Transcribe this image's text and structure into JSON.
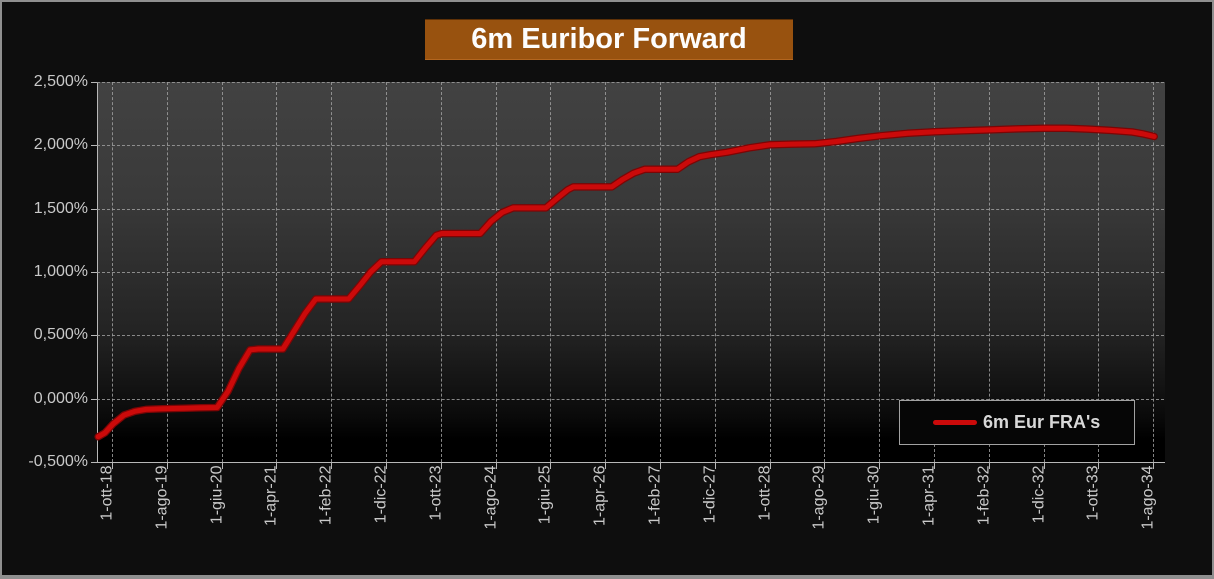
{
  "window": {
    "background": "#0e0e0e",
    "frame_border_color": "#8f8f8f"
  },
  "title": {
    "text": "6m Euribor Forward",
    "background": "#98520f",
    "color": "#fdfdfd"
  },
  "legend": {
    "label": "6m Eur FRA's",
    "line_color": "#cb0a0a",
    "position": "bottom-right"
  },
  "axis_style": {
    "axis_color": "#b8b8b8",
    "gridline_color": "#9d9d9d",
    "tick_label_color": "#c9c9c9",
    "grid": "dashed"
  },
  "chart_data": {
    "type": "line",
    "title": "6m Euribor Forward",
    "ylabel": "",
    "xlabel": "",
    "ylim": [
      -0.5,
      2.5
    ],
    "y_tick_labels": [
      "2,500%",
      "2,000%",
      "1,500%",
      "1,000%",
      "0,500%",
      "0,000%",
      "-0,500%"
    ],
    "y_tick_values": [
      2.5,
      2.0,
      1.5,
      1.0,
      0.5,
      0.0,
      -0.5
    ],
    "x_tick_labels": [
      "1-ott-18",
      "1-ago-19",
      "1-giu-20",
      "1-apr-21",
      "1-feb-22",
      "1-dic-22",
      "1-ott-23",
      "1-ago-24",
      "1-giu-25",
      "1-apr-26",
      "1-feb-27",
      "1-dic-27",
      "1-ott-28",
      "1-ago-29",
      "1-giu-30",
      "1-apr-31",
      "1-feb-32",
      "1-dic-32",
      "1-ott-33",
      "1-ago-34"
    ],
    "x_unit": "months since 1-ott-18; each tick = 10 months",
    "legend_position": "bottom-right",
    "series": [
      {
        "name": "6m Eur FRA's",
        "color": "#cb0a0a",
        "points_month_value": [
          [
            -2.7,
            -0.3
          ],
          [
            -1.5,
            -0.27
          ],
          [
            0,
            -0.2
          ],
          [
            2,
            -0.13
          ],
          [
            4,
            -0.1
          ],
          [
            6,
            -0.085
          ],
          [
            9,
            -0.08
          ],
          [
            13,
            -0.075
          ],
          [
            16,
            -0.072
          ],
          [
            19,
            -0.07
          ],
          [
            21,
            0.06
          ],
          [
            23,
            0.24
          ],
          [
            25,
            0.385
          ],
          [
            26.5,
            0.392
          ],
          [
            31,
            0.392
          ],
          [
            33,
            0.53
          ],
          [
            35,
            0.67
          ],
          [
            37,
            0.787
          ],
          [
            43,
            0.787
          ],
          [
            45,
            0.89
          ],
          [
            47,
            1.0
          ],
          [
            49,
            1.081
          ],
          [
            55,
            1.081
          ],
          [
            57,
            1.19
          ],
          [
            59,
            1.29
          ],
          [
            60,
            1.304
          ],
          [
            67,
            1.304
          ],
          [
            69,
            1.4
          ],
          [
            71,
            1.47
          ],
          [
            73,
            1.506
          ],
          [
            79,
            1.506
          ],
          [
            81,
            1.58
          ],
          [
            83,
            1.65
          ],
          [
            84,
            1.672
          ],
          [
            91,
            1.672
          ],
          [
            93,
            1.73
          ],
          [
            95,
            1.78
          ],
          [
            97,
            1.811
          ],
          [
            103,
            1.811
          ],
          [
            105,
            1.87
          ],
          [
            107,
            1.91
          ],
          [
            109,
            1.926
          ],
          [
            112,
            1.945
          ],
          [
            116,
            1.98
          ],
          [
            120,
            2.005
          ],
          [
            124,
            2.01
          ],
          [
            128,
            2.012
          ],
          [
            132,
            2.03
          ],
          [
            136,
            2.055
          ],
          [
            140,
            2.075
          ],
          [
            145,
            2.095
          ],
          [
            150,
            2.108
          ],
          [
            155,
            2.115
          ],
          [
            160,
            2.122
          ],
          [
            165,
            2.13
          ],
          [
            170,
            2.135
          ],
          [
            174,
            2.135
          ],
          [
            178,
            2.128
          ],
          [
            182,
            2.118
          ],
          [
            186,
            2.105
          ],
          [
            188,
            2.09
          ],
          [
            190,
            2.07
          ]
        ]
      }
    ]
  }
}
